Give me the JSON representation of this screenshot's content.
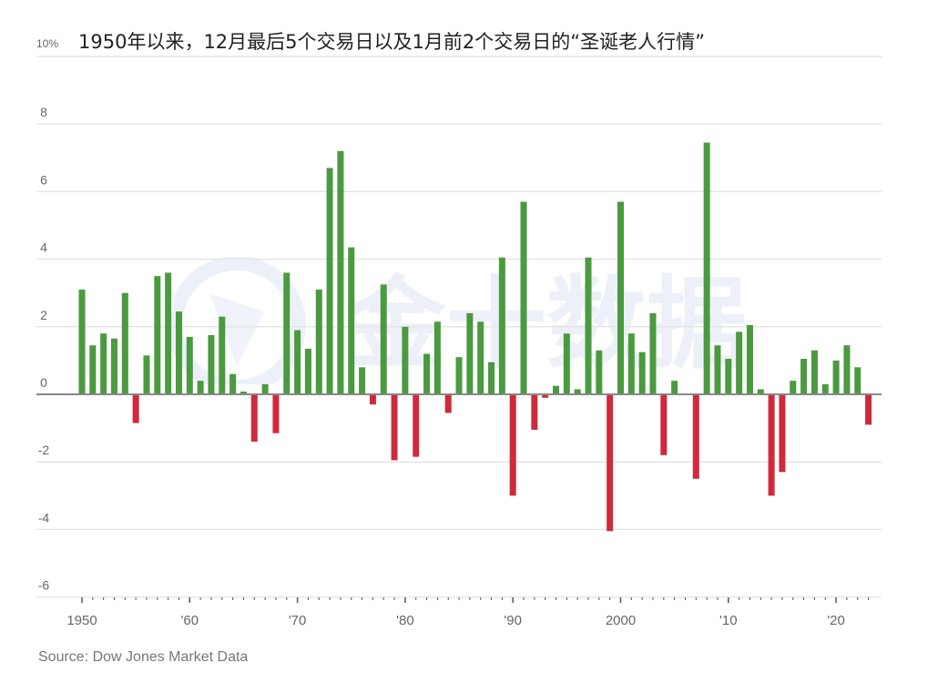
{
  "title": "1950年以来，12月最后5个交易日以及1月前2个交易日的“圣诞老人行情”",
  "source": "Source: Dow Jones Market Data",
  "watermark": "金十数据",
  "colors": {
    "positive": "#4a9a3f",
    "negative": "#d0293b",
    "grid": "#e6e6e6",
    "zero_line": "#888888",
    "axis_text": "#666666"
  },
  "chart_data": {
    "type": "bar",
    "title": "1950年以来，12月最后5个交易日以及1月前2个交易日的“圣诞老人行情”",
    "xlabel": "",
    "ylabel": "%",
    "ylim": [
      -6,
      10
    ],
    "yticks": [
      -6,
      -4,
      -2,
      0,
      2,
      4,
      6,
      8,
      10
    ],
    "ytick_labels": [
      "-6",
      "-4",
      "-2",
      "0",
      "2",
      "4",
      "6",
      "8",
      "10%"
    ],
    "xtick_labels": [
      {
        "year": 1950,
        "label": "1950"
      },
      {
        "year": 1960,
        "label": "'60"
      },
      {
        "year": 1970,
        "label": "'70"
      },
      {
        "year": 1980,
        "label": "'80"
      },
      {
        "year": 1990,
        "label": "'90"
      },
      {
        "year": 2000,
        "label": "2000"
      },
      {
        "year": 2010,
        "label": "'10"
      },
      {
        "year": 2020,
        "label": "'20"
      }
    ],
    "grid": true,
    "legend": null,
    "x": [
      1950,
      1951,
      1952,
      1953,
      1954,
      1955,
      1956,
      1957,
      1958,
      1959,
      1960,
      1961,
      1962,
      1963,
      1964,
      1965,
      1966,
      1967,
      1968,
      1969,
      1970,
      1971,
      1972,
      1973,
      1974,
      1975,
      1976,
      1977,
      1978,
      1979,
      1980,
      1981,
      1982,
      1983,
      1984,
      1985,
      1986,
      1987,
      1988,
      1989,
      1990,
      1991,
      1992,
      1993,
      1994,
      1995,
      1996,
      1997,
      1998,
      1999,
      2000,
      2001,
      2002,
      2003,
      2004,
      2005,
      2006,
      2007,
      2008,
      2009,
      2010,
      2011,
      2012,
      2013,
      2014,
      2015,
      2016,
      2017,
      2018,
      2019,
      2020,
      2021,
      2022,
      2023
    ],
    "values": [
      3.1,
      1.45,
      1.8,
      1.65,
      3.0,
      -0.85,
      1.15,
      3.5,
      3.6,
      2.45,
      1.7,
      0.4,
      1.75,
      2.3,
      0.6,
      0.08,
      -1.4,
      0.3,
      -1.15,
      3.6,
      1.9,
      1.35,
      3.1,
      6.7,
      7.2,
      4.35,
      0.8,
      -0.3,
      3.25,
      -1.95,
      2.0,
      -1.85,
      1.2,
      2.15,
      -0.55,
      1.1,
      2.4,
      2.15,
      0.95,
      4.05,
      -3.0,
      5.7,
      -1.05,
      -0.1,
      0.25,
      1.8,
      0.15,
      4.05,
      1.3,
      -4.05,
      5.7,
      1.8,
      1.25,
      2.4,
      -1.8,
      0.4,
      0,
      -2.5,
      7.45,
      1.45,
      1.05,
      1.85,
      2.05,
      0.15,
      -3.0,
      -2.3,
      0.4,
      1.05,
      1.3,
      0.3,
      1.0,
      1.45,
      0.8,
      -0.9
    ],
    "source": "Dow Jones Market Data"
  }
}
